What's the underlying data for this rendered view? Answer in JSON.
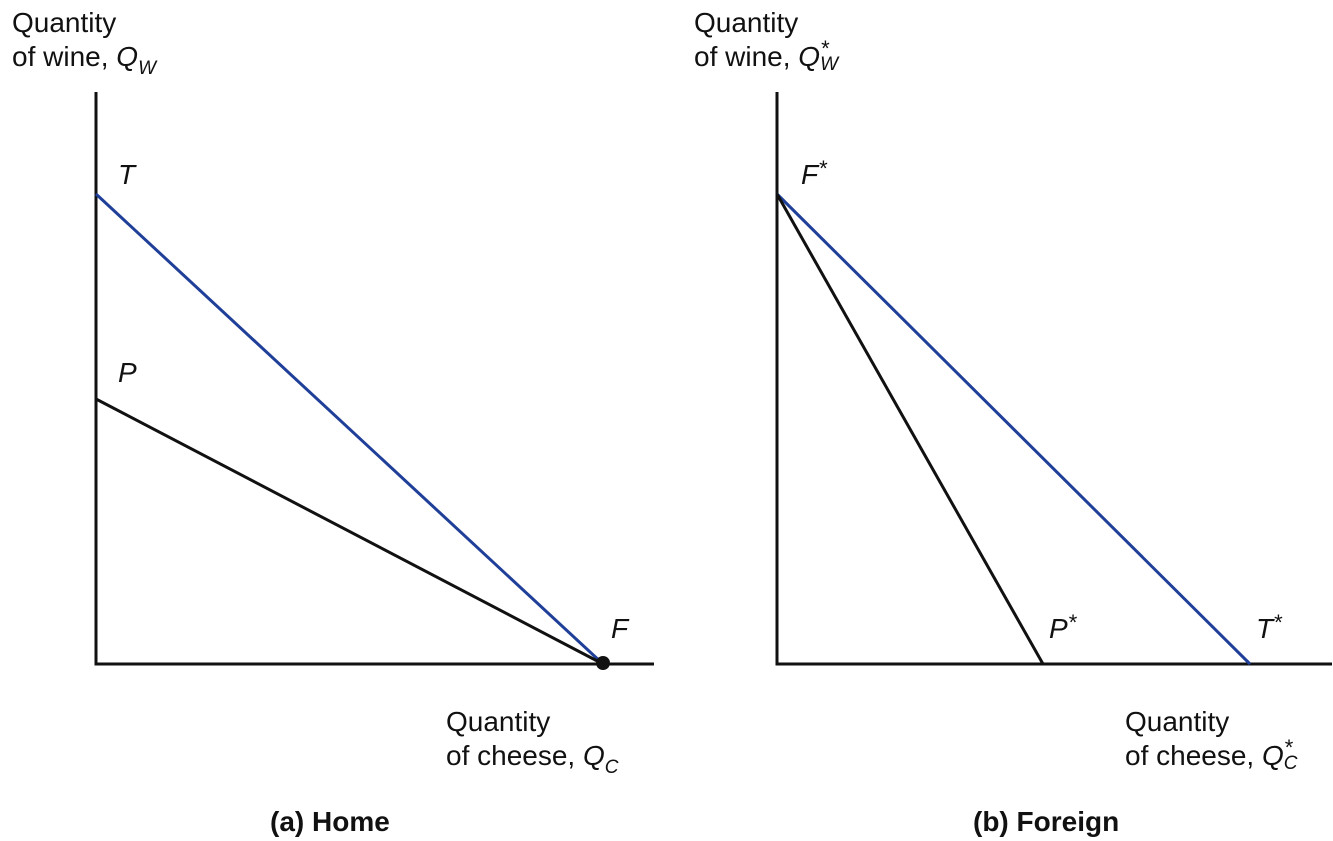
{
  "colors": {
    "trade_line": "#1f3f99",
    "production_line": "#111111",
    "axis": "#111111"
  },
  "panels": [
    {
      "id": "home",
      "caption": "(a) Home",
      "y_axis": {
        "line1": "Quantity",
        "line2_prefix": "of wine, ",
        "var": "Q",
        "sub": "W"
      },
      "x_axis": {
        "line1": "Quantity",
        "line2_prefix": "of cheese, ",
        "var": "Q",
        "sub": "C"
      },
      "points": {
        "T": {
          "label": "T",
          "star": ""
        },
        "P": {
          "label": "P",
          "star": ""
        },
        "F": {
          "label": "F",
          "star": ""
        }
      }
    },
    {
      "id": "foreign",
      "caption": "(b) Foreign",
      "y_axis": {
        "line1": "Quantity",
        "line2_prefix": "of wine, ",
        "var": "Q",
        "sup": "*",
        "sub": "W"
      },
      "x_axis": {
        "line1": "Quantity",
        "line2_prefix": "of cheese, ",
        "var": "Q",
        "sup": "*",
        "sub": "C"
      },
      "points": {
        "F": {
          "label": "F",
          "star": "*"
        },
        "P": {
          "label": "P",
          "star": "*"
        },
        "T": {
          "label": "T",
          "star": "*"
        }
      }
    }
  ]
}
